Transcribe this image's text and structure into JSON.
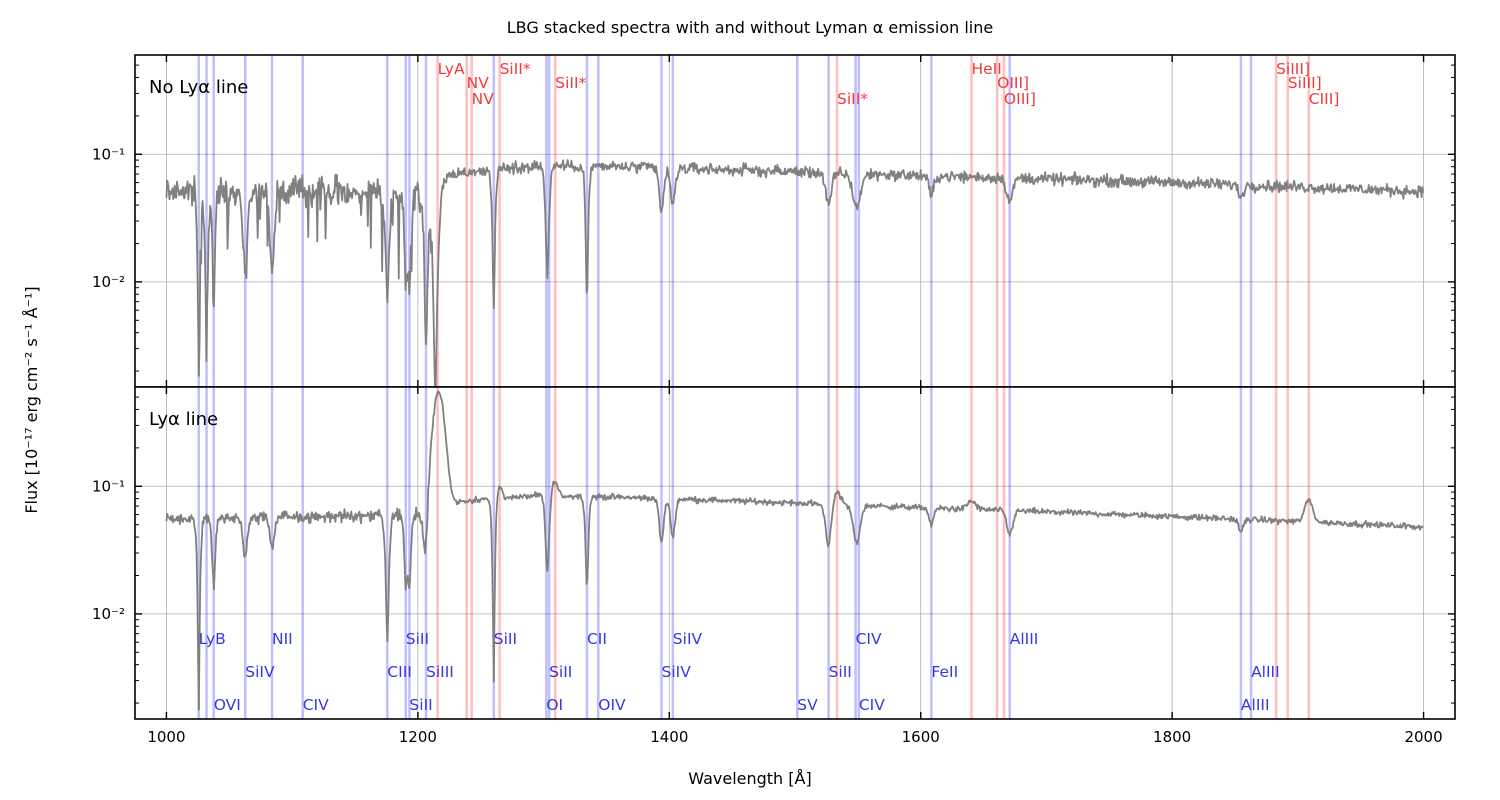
{
  "chart_data": {
    "type": "line",
    "title": "LBG stacked spectra with and without Lyman α emission line",
    "xlabel": "Wavelength [Å]",
    "ylabel": "Flux [10⁻¹⁷ erg cm⁻² s⁻¹ Å⁻¹]",
    "xlim": [
      975,
      2025
    ],
    "ylim": [
      0.0015,
      0.6
    ],
    "yscale": "log",
    "grid": true,
    "x_ticks": [
      1000,
      1200,
      1400,
      1600,
      1800,
      2000
    ],
    "x_tick_labels": [
      "1000",
      "1200",
      "1400",
      "1600",
      "1800",
      "2000"
    ],
    "y_ticks": [
      0.01,
      0.1
    ],
    "y_tick_labels": [
      "10⁻²",
      "10⁻¹"
    ],
    "colors": {
      "spectrum": "#808080",
      "absorption": "#0000ff",
      "emission": "#ff0000",
      "absorption_text": "#3838e0",
      "emission_text": "#f03c3c"
    },
    "panels": [
      {
        "name": "No Lyα line",
        "series_name": "No Lyα line",
        "continuum": {
          "x": [
            1000,
            1210,
            1225,
            1300,
            1400,
            1600,
            1800,
            2000
          ],
          "y": [
            0.052,
            0.05,
            0.07,
            0.082,
            0.078,
            0.068,
            0.06,
            0.051
          ]
        },
        "features": [
          {
            "x": 1025.7,
            "depth": 0.04,
            "width": 1.5
          },
          {
            "x": 1031.9,
            "depth": 0.05,
            "width": 1.5
          },
          {
            "x": 1037.6,
            "depth": 0.12,
            "width": 1.5
          },
          {
            "x": 1062.7,
            "depth": 0.18,
            "width": 2
          },
          {
            "x": 1084.0,
            "depth": 0.22,
            "width": 2
          },
          {
            "x": 1175.7,
            "depth": 0.15,
            "width": 2
          },
          {
            "x": 1190.4,
            "depth": 0.2,
            "width": 1.5
          },
          {
            "x": 1193.3,
            "depth": 0.2,
            "width": 1.5
          },
          {
            "x": 1206.5,
            "depth": 0.08,
            "width": 2
          },
          {
            "x": 1214.0,
            "depth": 0.015,
            "width": 3
          },
          {
            "x": 1260.4,
            "depth": 0.08,
            "width": 1.5
          },
          {
            "x": 1303.0,
            "depth": 0.13,
            "width": 1.8
          },
          {
            "x": 1334.5,
            "depth": 0.09,
            "width": 1.5
          },
          {
            "x": 1393.8,
            "depth": 0.45,
            "width": 2
          },
          {
            "x": 1402.8,
            "depth": 0.5,
            "width": 2
          },
          {
            "x": 1526.7,
            "depth": 0.55,
            "width": 2.5
          },
          {
            "x": 1549.0,
            "depth": 0.55,
            "width": 3.5
          },
          {
            "x": 1608.5,
            "depth": 0.7,
            "width": 2
          },
          {
            "x": 1670.8,
            "depth": 0.65,
            "width": 2.5
          },
          {
            "x": 1854.7,
            "depth": 0.8,
            "width": 2
          }
        ],
        "emission": []
      },
      {
        "name": "Lyα line",
        "series_name": "Lyα line",
        "continuum": {
          "x": [
            1000,
            1210,
            1225,
            1300,
            1400,
            1600,
            1800,
            2000
          ],
          "y": [
            0.055,
            0.06,
            0.075,
            0.085,
            0.08,
            0.068,
            0.058,
            0.048
          ]
        },
        "features": [
          {
            "x": 1025.7,
            "depth": 0.03,
            "width": 1.5
          },
          {
            "x": 1037.6,
            "depth": 0.3,
            "width": 1.5
          },
          {
            "x": 1062.7,
            "depth": 0.5,
            "width": 2
          },
          {
            "x": 1084.0,
            "depth": 0.6,
            "width": 2
          },
          {
            "x": 1175.7,
            "depth": 0.1,
            "width": 1.8
          },
          {
            "x": 1190.4,
            "depth": 0.3,
            "width": 1.5
          },
          {
            "x": 1193.3,
            "depth": 0.3,
            "width": 1.5
          },
          {
            "x": 1206.5,
            "depth": 0.25,
            "width": 2
          },
          {
            "x": 1260.4,
            "depth": 0.02,
            "width": 1.5
          },
          {
            "x": 1303.0,
            "depth": 0.25,
            "width": 1.8
          },
          {
            "x": 1334.5,
            "depth": 0.2,
            "width": 1.5
          },
          {
            "x": 1393.8,
            "depth": 0.45,
            "width": 2
          },
          {
            "x": 1402.8,
            "depth": 0.5,
            "width": 2
          },
          {
            "x": 1526.7,
            "depth": 0.45,
            "width": 2.5
          },
          {
            "x": 1549.0,
            "depth": 0.5,
            "width": 3
          },
          {
            "x": 1608.5,
            "depth": 0.75,
            "width": 2
          },
          {
            "x": 1670.8,
            "depth": 0.65,
            "width": 2.5
          },
          {
            "x": 1854.7,
            "depth": 0.8,
            "width": 2
          }
        ],
        "emission": [
          {
            "x": 1216.5,
            "peak": 0.55,
            "width": 4
          },
          {
            "x": 1265.0,
            "peak": 0.1,
            "width": 2
          },
          {
            "x": 1309.0,
            "peak": 0.11,
            "width": 2
          },
          {
            "x": 1533.0,
            "peak": 0.09,
            "width": 3
          },
          {
            "x": 1640.4,
            "peak": 0.077,
            "width": 3
          },
          {
            "x": 1908.7,
            "peak": 0.078,
            "width": 3
          }
        ]
      }
    ],
    "absorption_lines": [
      1025.7,
      1031.9,
      1037.6,
      1062.7,
      1084.0,
      1108.4,
      1175.7,
      1190.4,
      1193.3,
      1206.5,
      1260.4,
      1302.2,
      1304.4,
      1334.5,
      1343.5,
      1393.8,
      1402.8,
      1501.8,
      1526.7,
      1548.2,
      1550.8,
      1608.5,
      1670.8,
      1854.7,
      1862.8
    ],
    "emission_lines": [
      1215.7,
      1238.8,
      1242.8,
      1265.0,
      1309.3,
      1533.4,
      1640.4,
      1660.8,
      1666.2,
      1882.7,
      1892.0,
      1908.7
    ],
    "emission_labels": [
      {
        "text": "LyA",
        "x": 1215.7,
        "row": 0
      },
      {
        "text": "NV",
        "x": 1238.8,
        "row": 1
      },
      {
        "text": "NV",
        "x": 1242.8,
        "row": 2
      },
      {
        "text": "SiII*",
        "x": 1265.0,
        "row": 0
      },
      {
        "text": "SiII*",
        "x": 1309.3,
        "row": 1
      },
      {
        "text": "SiII*",
        "x": 1533.4,
        "row": 2
      },
      {
        "text": "HeII",
        "x": 1640.4,
        "row": 0
      },
      {
        "text": "OIII]",
        "x": 1660.8,
        "row": 1
      },
      {
        "text": "OIII]",
        "x": 1666.2,
        "row": 2
      },
      {
        "text": "SiIII]",
        "x": 1882.7,
        "row": 0
      },
      {
        "text": "SiIII]",
        "x": 1892.0,
        "row": 1
      },
      {
        "text": "CIII]",
        "x": 1908.7,
        "row": 2
      }
    ],
    "absorption_labels": [
      {
        "text": "LyB",
        "x": 1025.7,
        "row": 0
      },
      {
        "text": "OVI",
        "x": 1037.6,
        "row": 2
      },
      {
        "text": "SiIV",
        "x": 1062.7,
        "row": 1
      },
      {
        "text": "NII",
        "x": 1084.0,
        "row": 0
      },
      {
        "text": "CIV",
        "x": 1108.4,
        "row": 2
      },
      {
        "text": "CIII",
        "x": 1175.7,
        "row": 1
      },
      {
        "text": "SiII",
        "x": 1190.4,
        "row": 0
      },
      {
        "text": "SiII",
        "x": 1193.3,
        "row": 2
      },
      {
        "text": "SiIII",
        "x": 1206.5,
        "row": 1
      },
      {
        "text": "SiII",
        "x": 1260.4,
        "row": 0
      },
      {
        "text": "OI",
        "x": 1302.2,
        "row": 2
      },
      {
        "text": "SiII",
        "x": 1304.4,
        "row": 1
      },
      {
        "text": "CII",
        "x": 1334.5,
        "row": 0
      },
      {
        "text": "OIV",
        "x": 1343.5,
        "row": 2
      },
      {
        "text": "SiIV",
        "x": 1393.8,
        "row": 1
      },
      {
        "text": "SiIV",
        "x": 1402.8,
        "row": 0
      },
      {
        "text": "SV",
        "x": 1501.8,
        "row": 2
      },
      {
        "text": "SiII",
        "x": 1526.7,
        "row": 1
      },
      {
        "text": "CIV",
        "x": 1548.2,
        "row": 0
      },
      {
        "text": "CIV",
        "x": 1550.8,
        "row": 2
      },
      {
        "text": "FeII",
        "x": 1608.5,
        "row": 1
      },
      {
        "text": "AlIII",
        "x": 1670.8,
        "row": 0
      },
      {
        "text": "AlIII",
        "x": 1854.7,
        "row": 2
      },
      {
        "text": "AlIII",
        "x": 1862.8,
        "row": 1
      }
    ]
  }
}
